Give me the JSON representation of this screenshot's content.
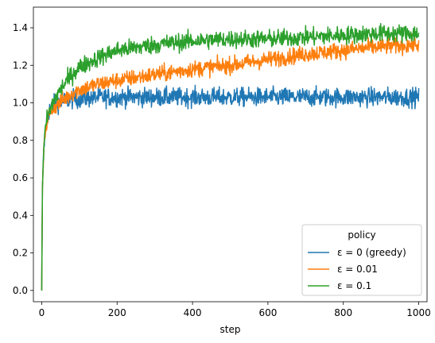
{
  "chart_data": {
    "type": "line",
    "title": "",
    "xlabel": "step",
    "ylabel": "",
    "xlim": [
      -22,
      1022
    ],
    "ylim": [
      -0.06,
      1.51
    ],
    "xticks": [
      0,
      200,
      400,
      600,
      800,
      1000
    ],
    "yticks": [
      0.0,
      0.2,
      0.4,
      0.6,
      0.8,
      1.0,
      1.2,
      1.4
    ],
    "xtick_labels": [
      "0",
      "200",
      "400",
      "600",
      "800",
      "1000"
    ],
    "ytick_labels": [
      "0.0",
      "0.2",
      "0.4",
      "0.6",
      "0.8",
      "1.0",
      "1.2",
      "1.4"
    ],
    "grid": false,
    "legend": {
      "title": "policy",
      "placement": "lower right"
    },
    "series": [
      {
        "name": "ε = 0 (greedy)",
        "color": "#1f77b4",
        "noise": 0.025,
        "x": [
          0,
          2,
          5,
          10,
          15,
          20,
          30,
          40,
          60,
          80,
          100,
          150,
          200,
          300,
          400,
          500,
          600,
          700,
          800,
          900,
          1000
        ],
        "y": [
          0.0,
          0.55,
          0.72,
          0.86,
          0.92,
          0.96,
          0.99,
          1.0,
          1.01,
          1.02,
          1.02,
          1.03,
          1.03,
          1.03,
          1.03,
          1.03,
          1.03,
          1.03,
          1.03,
          1.03,
          1.03
        ]
      },
      {
        "name": "ε = 0.01",
        "color": "#ff7f0e",
        "noise": 0.022,
        "x": [
          0,
          2,
          5,
          10,
          15,
          20,
          30,
          40,
          60,
          80,
          100,
          150,
          200,
          300,
          400,
          500,
          600,
          700,
          800,
          900,
          1000
        ],
        "y": [
          0.0,
          0.55,
          0.72,
          0.86,
          0.91,
          0.94,
          0.97,
          0.99,
          1.02,
          1.05,
          1.07,
          1.1,
          1.12,
          1.15,
          1.18,
          1.2,
          1.23,
          1.26,
          1.28,
          1.3,
          1.31
        ]
      },
      {
        "name": "ε = 0.1",
        "color": "#2ca02c",
        "noise": 0.024,
        "x": [
          0,
          2,
          5,
          10,
          15,
          20,
          30,
          40,
          60,
          80,
          100,
          150,
          200,
          300,
          400,
          500,
          600,
          700,
          800,
          900,
          1000
        ],
        "y": [
          0.0,
          0.55,
          0.72,
          0.87,
          0.92,
          0.95,
          1.0,
          1.04,
          1.1,
          1.15,
          1.19,
          1.24,
          1.28,
          1.31,
          1.33,
          1.34,
          1.34,
          1.35,
          1.36,
          1.37,
          1.37
        ]
      }
    ]
  }
}
